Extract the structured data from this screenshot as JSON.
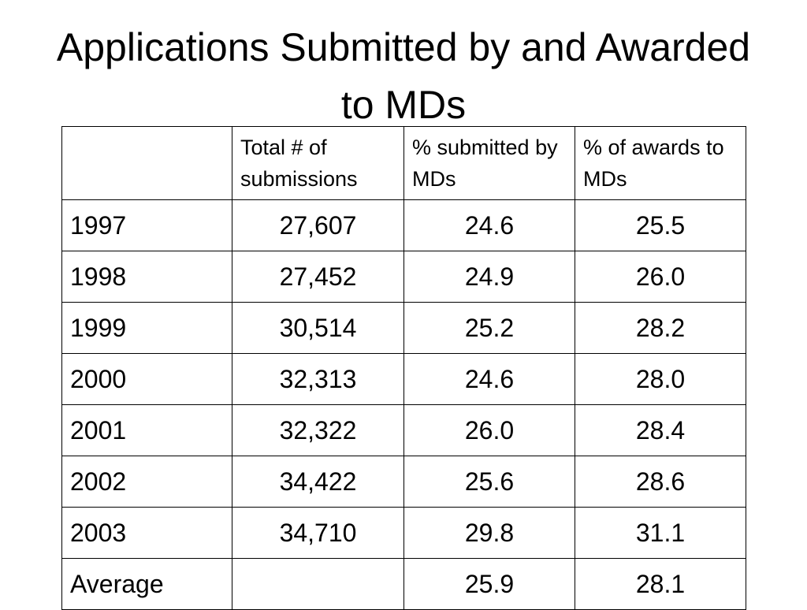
{
  "title": "Applications Submitted by and Awarded to MDs",
  "table": {
    "header": [
      null,
      "Total # of submissions",
      "% submitted by MDs",
      "% of awards to MDs"
    ],
    "rows": [
      [
        "1997",
        "27,607",
        "24.6",
        "25.5"
      ],
      [
        "1998",
        "27,452",
        "24.9",
        "26.0"
      ],
      [
        "1999",
        "30,514",
        "25.2",
        "28.2"
      ],
      [
        "2000",
        "32,313",
        "24.6",
        "28.0"
      ],
      [
        "2001",
        "32,322",
        "26.0",
        "28.4"
      ],
      [
        "2002",
        "34,422",
        "25.6",
        "28.6"
      ],
      [
        "2003",
        "34,710",
        "29.8",
        "31.1"
      ],
      [
        "Average",
        null,
        "25.9",
        "28.1"
      ]
    ]
  }
}
